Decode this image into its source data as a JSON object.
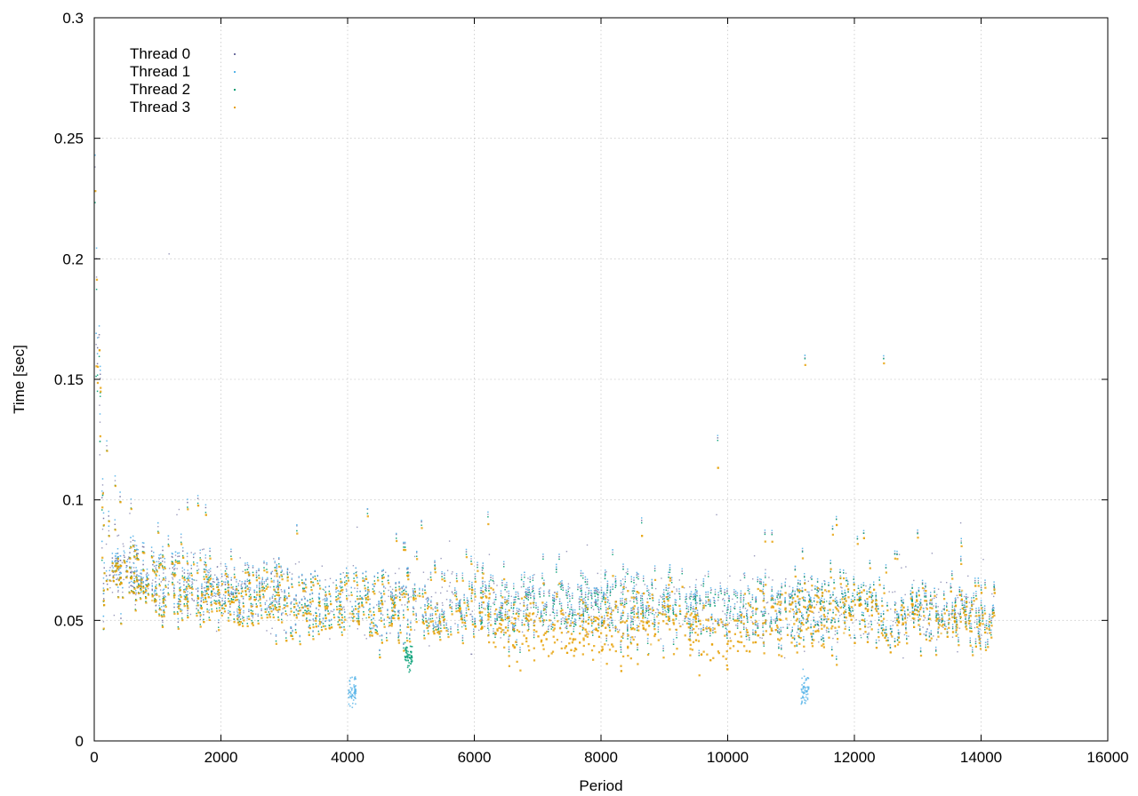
{
  "chart_data": {
    "type": "scatter",
    "title": "",
    "xlabel": "Period",
    "ylabel": "Time [sec]",
    "xlim": [
      0,
      16000
    ],
    "ylim": [
      0,
      0.3
    ],
    "x_ticks": [
      0,
      2000,
      4000,
      6000,
      8000,
      10000,
      12000,
      14000,
      16000
    ],
    "y_ticks": [
      0,
      0.05,
      0.1,
      0.15,
      0.2,
      0.25,
      0.3
    ],
    "x_tick_labels": [
      "0",
      "2000",
      "4000",
      "6000",
      "8000",
      "10000",
      "12000",
      "14000",
      "16000"
    ],
    "y_tick_labels": [
      "0",
      "0.05",
      "0.1",
      "0.15",
      "0.2",
      "0.25",
      "0.3"
    ],
    "grid": true,
    "legend_position": "top-left",
    "series": [
      {
        "name": "Thread 0",
        "color": "#6f6fa0",
        "x_range": [
          0,
          14200
        ],
        "trend": [
          [
            0,
            0.215
          ],
          [
            150,
            0.07
          ],
          [
            2000,
            0.063
          ],
          [
            4000,
            0.058
          ],
          [
            6000,
            0.057
          ],
          [
            8000,
            0.057
          ],
          [
            10000,
            0.056
          ],
          [
            12000,
            0.055
          ],
          [
            14200,
            0.054
          ]
        ]
      },
      {
        "name": "Thread 1",
        "color": "#56b4e9",
        "x_range": [
          0,
          14200
        ],
        "trend": [
          [
            0,
            0.22
          ],
          [
            150,
            0.072
          ],
          [
            2000,
            0.064
          ],
          [
            4000,
            0.058
          ],
          [
            6000,
            0.058
          ],
          [
            8000,
            0.058
          ],
          [
            10000,
            0.057
          ],
          [
            12000,
            0.056
          ],
          [
            14200,
            0.055
          ]
        ],
        "clusters": [
          {
            "x": 4060,
            "y": 0.021
          },
          {
            "x": 11210,
            "y": 0.022
          }
        ]
      },
      {
        "name": "Thread 2",
        "color": "#009e73",
        "x_range": [
          0,
          14200
        ],
        "trend": [
          [
            0,
            0.2
          ],
          [
            150,
            0.068
          ],
          [
            2000,
            0.061
          ],
          [
            4000,
            0.056
          ],
          [
            6000,
            0.056
          ],
          [
            8000,
            0.056
          ],
          [
            10000,
            0.055
          ],
          [
            12000,
            0.055
          ],
          [
            14200,
            0.053
          ]
        ],
        "clusters": [
          {
            "x": 4950,
            "y": 0.036
          }
        ]
      },
      {
        "name": "Thread 3",
        "color": "#e69f00",
        "x_range": [
          0,
          14200
        ],
        "trend": [
          [
            0,
            0.205
          ],
          [
            150,
            0.068
          ],
          [
            2000,
            0.06
          ],
          [
            4000,
            0.055
          ],
          [
            6000,
            0.055
          ],
          [
            7000,
            0.046
          ],
          [
            8000,
            0.046
          ],
          [
            9000,
            0.053
          ],
          [
            10000,
            0.042
          ],
          [
            10400,
            0.052
          ],
          [
            12000,
            0.053
          ],
          [
            14200,
            0.052
          ]
        ]
      }
    ]
  }
}
